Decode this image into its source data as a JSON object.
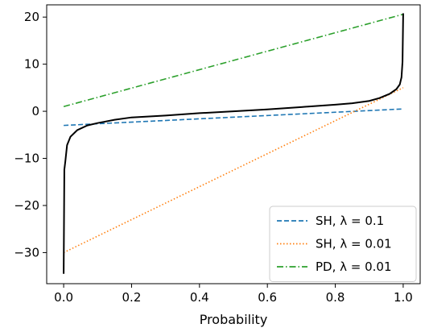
{
  "chart_data": {
    "type": "line",
    "xlabel": "Probability",
    "ylabel": "",
    "xlim": [
      -0.05,
      1.05
    ],
    "ylim": [
      -36.6,
      22.6
    ],
    "grid": false,
    "legend_position": "lower-right",
    "xticks": [
      0.0,
      0.2,
      0.4,
      0.6,
      0.8,
      1.0
    ],
    "xtick_labels": [
      "0.0",
      "0.2",
      "0.4",
      "0.6",
      "0.8",
      "1.0"
    ],
    "yticks": [
      -30,
      -20,
      -10,
      0,
      10,
      20
    ],
    "ytick_labels": [
      "−30",
      "−20",
      "−10",
      "0",
      "10",
      "20"
    ],
    "series": [
      {
        "name": "SH, λ = 0.1",
        "color": "#1f77b4",
        "style": "dashed",
        "x": [
          0.0,
          1.0
        ],
        "y": [
          -3.0,
          0.5
        ]
      },
      {
        "name": "SH, λ = 0.01",
        "color": "#ff7f0e",
        "style": "dotted",
        "x": [
          0.0,
          1.0
        ],
        "y": [
          -30.0,
          5.0
        ]
      },
      {
        "name": "PD, λ = 0.01",
        "color": "#2ca02c",
        "style": "dashdot",
        "x": [
          0.0,
          1.0
        ],
        "y": [
          1.0,
          20.6
        ]
      },
      {
        "color": "#000000",
        "style": "solid",
        "x": [
          0.0,
          0.002,
          0.005,
          0.01,
          0.02,
          0.04,
          0.07,
          0.1,
          0.15,
          0.2,
          0.3,
          0.4,
          0.5,
          0.6,
          0.7,
          0.8,
          0.85,
          0.9,
          0.93,
          0.96,
          0.98,
          0.99,
          0.995,
          0.998,
          1.0
        ],
        "y": [
          -34.5,
          -12.4,
          -10.6,
          -7.2,
          -5.4,
          -4.0,
          -3.0,
          -2.5,
          -1.8,
          -1.3,
          -0.9,
          -0.4,
          0.0,
          0.4,
          0.9,
          1.4,
          1.7,
          2.2,
          2.8,
          3.7,
          4.7,
          5.7,
          7.2,
          10.5,
          20.8
        ]
      }
    ]
  }
}
